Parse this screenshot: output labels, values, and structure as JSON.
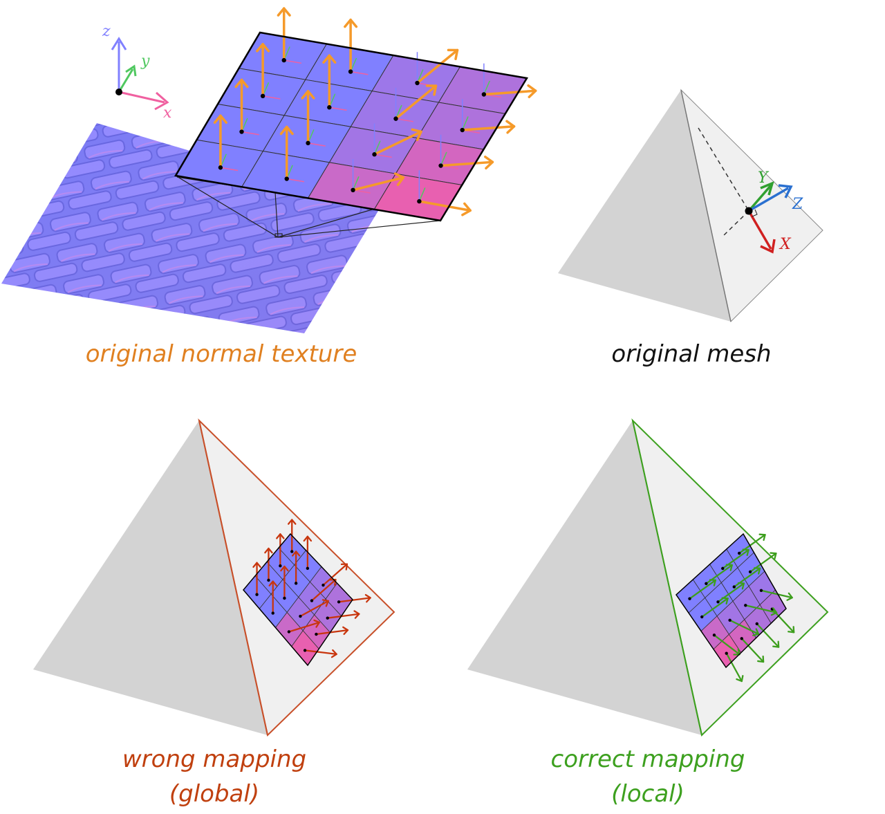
{
  "panels": {
    "texture": {
      "caption": "original normal texture",
      "caption_color": "#e08020",
      "axes": {
        "x": "x",
        "y": "y",
        "z": "z"
      }
    },
    "mesh": {
      "caption": "original mesh",
      "caption_color": "#111111",
      "axes": {
        "x": "X",
        "y": "Y",
        "z": "Z"
      }
    },
    "wrong": {
      "caption_line1": "wrong mapping",
      "caption_line2": "(global)",
      "caption_color": "#c0400f"
    },
    "correct": {
      "caption_line1": "correct mapping",
      "caption_line2": "(local)",
      "caption_color": "#3da01f"
    }
  },
  "colors": {
    "normal_blue": "#8080ff",
    "normal_pink": "#e860b0",
    "orange_arrow": "#f59a2a",
    "red_arrow": "#c8360e",
    "green_arrow": "#3d9e1d",
    "axis_x_texture": "#f060a0",
    "axis_y_texture": "#50c860",
    "axis_z_texture": "#8080ff",
    "axis_x_mesh": "#d02020",
    "axis_y_mesh": "#30a030",
    "axis_z_mesh": "#2a70d0",
    "face_dark": "#d3d3d3",
    "face_light": "#f0f0f0"
  }
}
